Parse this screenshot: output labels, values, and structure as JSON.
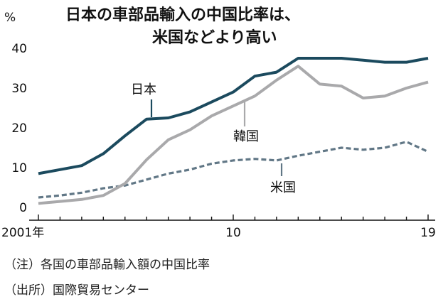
{
  "title_lines": [
    "日本の車部品輸入の中国比率は、",
    "米国などより高い"
  ],
  "notes": [
    "（注）各国の車部品輸入額の中国比率",
    "（出所）国際貿易センター"
  ],
  "chart_data": {
    "type": "line",
    "unit": "%",
    "x": [
      2001,
      2002,
      2003,
      2004,
      2005,
      2006,
      2007,
      2008,
      2009,
      2010,
      2011,
      2012,
      2013,
      2014,
      2015,
      2016,
      2017,
      2018,
      2019
    ],
    "x_tick_labels": [
      {
        "x": 2001,
        "label": "2001年"
      },
      {
        "x": 2010,
        "label": "10"
      },
      {
        "x": 2019,
        "label": "19"
      }
    ],
    "ylim": [
      0,
      40
    ],
    "y_ticks": [
      0,
      10,
      20,
      30,
      40
    ],
    "series": [
      {
        "name": "日本",
        "color": "#1b4a5e",
        "style": "solid",
        "values": [
          8.5,
          9.5,
          10.5,
          13.5,
          18,
          22.2,
          22.5,
          24,
          26.5,
          29,
          33,
          34,
          37.5,
          37.5,
          37.5,
          37,
          36.5,
          36.5,
          37.5
        ]
      },
      {
        "name": "韓国",
        "color": "#a9a9ab",
        "style": "solid",
        "values": [
          1,
          1.5,
          2,
          3,
          6,
          12,
          17,
          19.5,
          23,
          25.5,
          28,
          32,
          35.5,
          31,
          30.5,
          27.5,
          28,
          30,
          31.5
        ]
      },
      {
        "name": "米国",
        "color": "#617786",
        "style": "dashed",
        "values": [
          2.5,
          3,
          3.7,
          4.8,
          5.5,
          7,
          8.5,
          9.5,
          11,
          11.8,
          12.2,
          11.8,
          13,
          14,
          15,
          14.5,
          15,
          16.5,
          14
        ]
      }
    ],
    "grid": false
  }
}
